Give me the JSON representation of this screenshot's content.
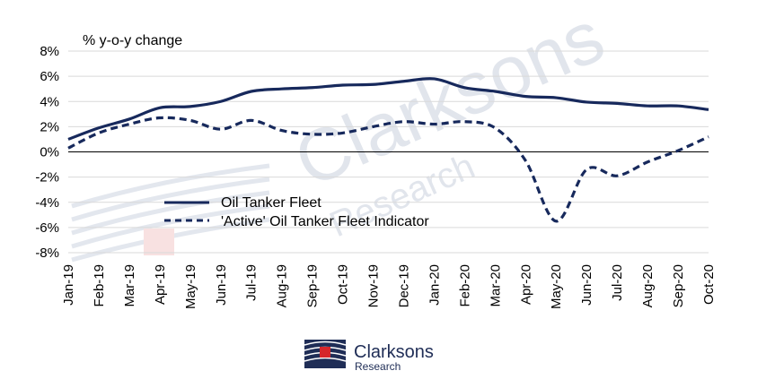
{
  "chart_data": {
    "type": "line",
    "ylabel": "% y-o-y change",
    "ylim": [
      -8,
      8
    ],
    "yticks": [
      -8,
      -6,
      -4,
      -2,
      0,
      2,
      4,
      6,
      8
    ],
    "ytick_suffix": "%",
    "grid": "horizontal",
    "legend_position": "center-left",
    "categories": [
      "Jan-19",
      "Feb-19",
      "Mar-19",
      "Apr-19",
      "May-19",
      "Jun-19",
      "Jul-19",
      "Aug-19",
      "Sep-19",
      "Oct-19",
      "Nov-19",
      "Dec-19",
      "Jan-20",
      "Feb-20",
      "Mar-20",
      "Apr-20",
      "May-20",
      "Jun-20",
      "Jul-20",
      "Aug-20",
      "Sep-20",
      "Oct-20"
    ],
    "series": [
      {
        "name": "Oil Tanker Fleet",
        "style": "solid",
        "color": "#17295c",
        "values": [
          1.0,
          1.9,
          2.6,
          3.5,
          3.6,
          4.0,
          4.8,
          5.0,
          5.1,
          5.3,
          5.35,
          5.6,
          5.8,
          5.1,
          4.8,
          4.4,
          4.3,
          3.95,
          3.85,
          3.65,
          3.65,
          3.35
        ]
      },
      {
        "name": "'Active' Oil Tanker Fleet Indicator",
        "style": "dashed",
        "color": "#17295c",
        "values": [
          0.3,
          1.5,
          2.2,
          2.7,
          2.5,
          1.8,
          2.5,
          1.7,
          1.4,
          1.5,
          2.0,
          2.4,
          2.2,
          2.4,
          1.9,
          -0.7,
          -5.5,
          -1.4,
          -1.9,
          -0.8,
          0.1,
          1.2
        ]
      }
    ]
  },
  "watermark": {
    "line1": "Clarksons",
    "line2": "Research"
  },
  "logo": {
    "name": "Clarksons",
    "sub": "Research",
    "color": "#1f2d56",
    "accent": "#d6262b"
  }
}
